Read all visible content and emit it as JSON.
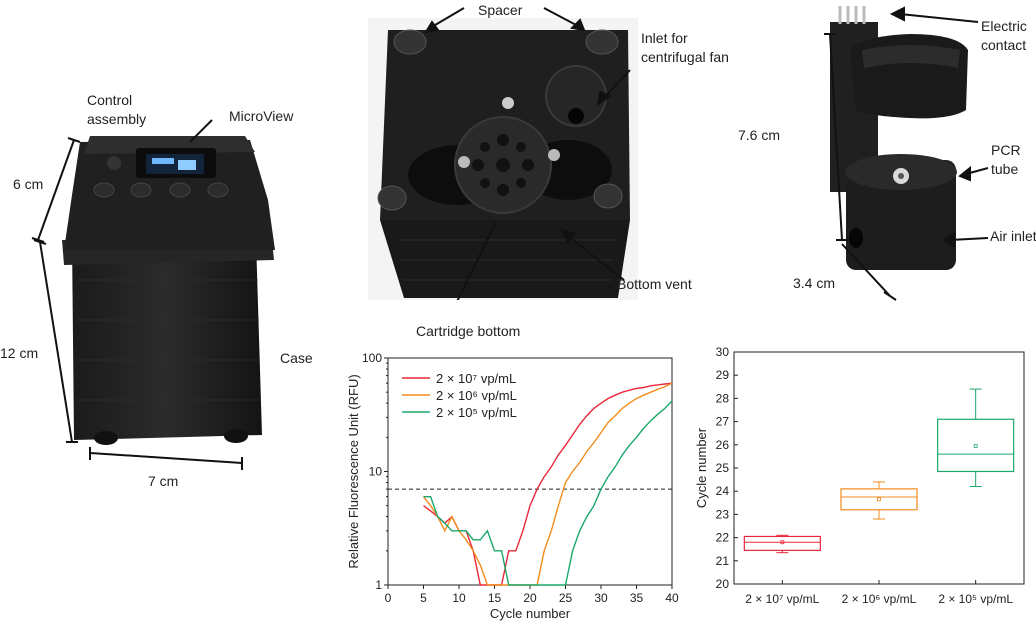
{
  "labels": {
    "control_assembly_1": "Control",
    "control_assembly_2": "assembly",
    "microview": "MicroView",
    "dim_6cm": "6 cm",
    "dim_12cm": "12 cm",
    "dim_7cm": "7 cm",
    "case": "Case",
    "spacer": "Spacer",
    "inlet_1": "Inlet for",
    "inlet_2": "centrifugal fan",
    "bottom_vent": "Bottom vent",
    "cartridge_bottom": "Cartridge bottom",
    "electric_1": "Electric",
    "electric_2": "contact",
    "dim_76cm": "7.6 cm",
    "pcr_1": "PCR",
    "pcr_2": "tube",
    "air_inlet": "Air inlet",
    "dim_34cm": "3.4 cm"
  },
  "chart_data": [
    {
      "type": "line",
      "xlabel": "Cycle number",
      "ylabel": "Relative Fluorescence Unit (RFU)",
      "xlim": [
        0,
        40
      ],
      "ylim": [
        1,
        100
      ],
      "yscale": "log",
      "xticks": [
        "0",
        "5",
        "10",
        "15",
        "20",
        "25",
        "30",
        "35",
        "40"
      ],
      "yticks": [
        "1",
        "10",
        "100"
      ],
      "threshold": 7,
      "legend_position": "top-left",
      "series": [
        {
          "name": "2 × 10⁷ vp/mL",
          "color": "#e8283a",
          "x": [
            5,
            6,
            7,
            8,
            9,
            10,
            11,
            12,
            13,
            14,
            15,
            16,
            17,
            18,
            19,
            20,
            21,
            22,
            23,
            24,
            25,
            26,
            27,
            28,
            29,
            30,
            31,
            32,
            33,
            34,
            35,
            36,
            37,
            38,
            39,
            40
          ],
          "y": [
            5,
            4.5,
            4,
            3.5,
            4,
            3,
            3,
            2,
            1,
            1,
            1,
            1,
            2,
            2,
            3,
            5,
            7,
            9,
            11,
            14,
            17,
            21,
            26,
            31,
            36,
            40,
            44,
            47,
            50,
            52,
            54,
            55,
            57,
            58,
            59,
            60
          ]
        },
        {
          "name": "2 × 10⁶ vp/mL",
          "color": "#f28c1e",
          "x": [
            5,
            6,
            7,
            8,
            9,
            10,
            11,
            12,
            13,
            14,
            15,
            16,
            17,
            18,
            19,
            20,
            21,
            22,
            23,
            24,
            25,
            26,
            27,
            28,
            29,
            30,
            31,
            32,
            33,
            34,
            35,
            36,
            37,
            38,
            39,
            40
          ],
          "y": [
            6,
            5,
            4,
            3,
            4,
            3,
            2.5,
            2,
            1.5,
            1,
            1,
            1,
            1,
            1,
            1,
            1,
            1,
            2,
            3,
            5,
            8,
            10,
            12,
            15,
            18,
            22,
            27,
            31,
            36,
            40,
            44,
            47,
            50,
            53,
            56,
            60
          ]
        },
        {
          "name": "2 × 10⁵ vp/mL",
          "color": "#1aa86a",
          "x": [
            5,
            6,
            7,
            8,
            9,
            10,
            11,
            12,
            13,
            14,
            15,
            16,
            17,
            18,
            19,
            20,
            21,
            22,
            23,
            24,
            25,
            26,
            27,
            28,
            29,
            30,
            31,
            32,
            33,
            34,
            35,
            36,
            37,
            38,
            39,
            40
          ],
          "y": [
            6,
            6,
            4,
            3.5,
            3,
            3,
            3,
            2.5,
            2.5,
            3,
            2,
            2,
            1,
            1,
            1,
            1,
            1,
            1,
            1,
            1,
            1,
            2,
            3,
            4,
            5,
            7,
            9,
            11,
            14,
            17,
            20,
            24,
            28,
            32,
            36,
            42
          ]
        }
      ]
    },
    {
      "type": "box",
      "ylabel": "Cycle number",
      "ylim": [
        20,
        30
      ],
      "yticks": [
        "20",
        "21",
        "22",
        "23",
        "24",
        "25",
        "26",
        "27",
        "28",
        "29",
        "30"
      ],
      "categories": [
        "2 × 10⁷ vp/mL",
        "2 × 10⁶ vp/mL",
        "2 × 10⁵ vp/mL"
      ],
      "boxes": [
        {
          "color": "#e8283a",
          "min": 21.35,
          "q1": 21.45,
          "median": 21.8,
          "mean": 21.8,
          "q3": 22.05,
          "max": 22.1
        },
        {
          "color": "#f28c1e",
          "min": 22.8,
          "q1": 23.2,
          "median": 23.75,
          "mean": 23.65,
          "q3": 24.1,
          "max": 24.4
        },
        {
          "color": "#1aa86a",
          "min": 24.2,
          "q1": 24.85,
          "median": 25.6,
          "mean": 25.95,
          "q3": 27.1,
          "max": 28.4
        }
      ]
    }
  ]
}
